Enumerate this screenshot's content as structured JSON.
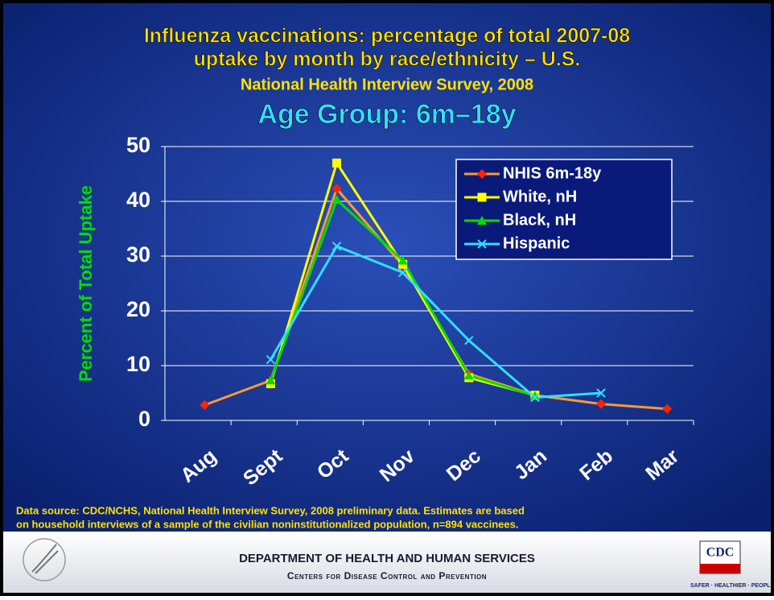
{
  "chart_data": {
    "type": "line",
    "title": [
      "Influenza vaccinations: percentage of total 2007-08",
      "uptake by month by race/ethnicity – U.S."
    ],
    "subtitle": "National Health Interview Survey, 2008",
    "heading": "Age Group: 6m–18y",
    "y_label": "Percent of Total Uptake",
    "categories": [
      "Aug",
      "Sept",
      "Oct",
      "Nov",
      "Dec",
      "Jan",
      "Feb",
      "Mar"
    ],
    "series": [
      {
        "name": "NHIS 6m-18y",
        "color": "#ff9933",
        "marker_color": "#ff2200",
        "marker": "diamond",
        "values": [
          2.8,
          7.3,
          42.3,
          28.3,
          8.5,
          4.6,
          3.0,
          2.1
        ]
      },
      {
        "name": "White, nH",
        "color": "#ffff00",
        "marker_color": "#ffff00",
        "marker": "square",
        "values": [
          null,
          6.7,
          47,
          28.5,
          7.8,
          4.6,
          null,
          null
        ]
      },
      {
        "name": "Black, nH",
        "color": "#00dd00",
        "marker_color": "#00dd00",
        "marker": "triangle",
        "values": [
          null,
          7.3,
          40.3,
          29.2,
          8.2,
          4.5,
          null,
          null
        ]
      },
      {
        "name": "Hispanic",
        "color": "#33ddff",
        "marker_color": "#33ddff",
        "marker": "x",
        "values": [
          null,
          11.1,
          31.8,
          27.0,
          14.6,
          4.2,
          5.0,
          null
        ]
      }
    ],
    "ylim": [
      0,
      50
    ],
    "yticks": [
      0,
      10,
      20,
      30,
      40,
      50
    ],
    "grid": true,
    "legend": "top-right",
    "source": [
      "Data source: CDC/NCHS, National Health Interview Survey, 2008 preliminary data.  Estimates are based",
      "on household interviews of a sample of the civilian noninstitutionalized population, n=894 vaccinees."
    ]
  },
  "footer": {
    "department": "DEPARTMENT OF HEALTH AND HUMAN SERVICES",
    "center": "Centers for Disease Control and Prevention",
    "logo": "CDC",
    "tagline": "SAFER · HEALTHIER · PEOPL"
  }
}
